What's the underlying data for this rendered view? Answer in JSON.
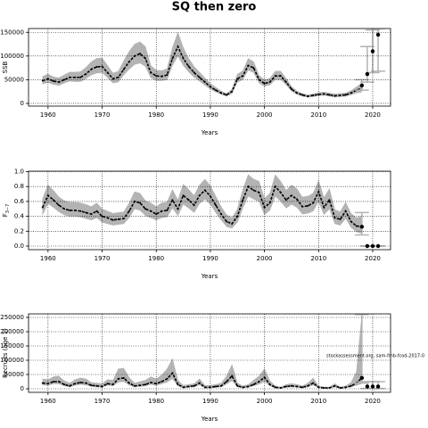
{
  "title": "SQ then zero",
  "chart_data": [
    {
      "type": "line",
      "ylabel": "SSB",
      "xlabel": "Years",
      "grid": true,
      "color": "#000000",
      "band_color": "#b3b3b3",
      "bar_color": "#b3b3b3",
      "xlim": [
        1956.4,
        2023.3
      ],
      "xticks": [
        1960,
        1970,
        1980,
        1990,
        2000,
        2010,
        2020
      ],
      "ylim": [
        -5700,
        158000
      ],
      "yticks": [
        0,
        50000,
        100000,
        150000
      ],
      "x": [
        1959,
        1960,
        1961,
        1962,
        1963,
        1964,
        1965,
        1966,
        1967,
        1968,
        1969,
        1970,
        1971,
        1972,
        1973,
        1974,
        1975,
        1976,
        1977,
        1978,
        1979,
        1980,
        1981,
        1982,
        1983,
        1984,
        1985,
        1986,
        1987,
        1988,
        1989,
        1990,
        1991,
        1992,
        1993,
        1994,
        1995,
        1996,
        1997,
        1998,
        1999,
        2000,
        2001,
        2002,
        2003,
        2004,
        2005,
        2006,
        2007,
        2008,
        2009,
        2010,
        2011,
        2012,
        2013,
        2014,
        2015,
        2016,
        2017,
        2018
      ],
      "values": [
        48000,
        52000,
        47000,
        45000,
        50000,
        55000,
        55000,
        55000,
        62000,
        72000,
        77000,
        78000,
        65000,
        52000,
        55000,
        72000,
        88000,
        100000,
        105000,
        95000,
        65000,
        58000,
        57000,
        60000,
        95000,
        120000,
        95000,
        78000,
        65000,
        55000,
        45000,
        35000,
        28000,
        22000,
        18000,
        25000,
        52000,
        58000,
        80000,
        75000,
        50000,
        42000,
        45000,
        58000,
        58000,
        45000,
        30000,
        22000,
        18000,
        15000,
        17000,
        19000,
        20000,
        18000,
        16000,
        17000,
        18000,
        22000,
        28000,
        32000
      ],
      "low": [
        41000,
        44000,
        40000,
        38000,
        43000,
        47000,
        46000,
        46000,
        52000,
        60000,
        64000,
        65000,
        54000,
        43000,
        45000,
        60000,
        72000,
        82000,
        85000,
        78000,
        54000,
        48000,
        48000,
        50000,
        80000,
        100000,
        80000,
        66000,
        55000,
        47000,
        38000,
        30000,
        24000,
        19000,
        15000,
        21000,
        45000,
        50000,
        70000,
        65000,
        43000,
        36000,
        39000,
        50000,
        50000,
        39000,
        26000,
        19000,
        15000,
        13000,
        14000,
        16000,
        17000,
        15000,
        13000,
        14000,
        15000,
        18000,
        22000,
        24000
      ],
      "high": [
        57000,
        62000,
        56000,
        54000,
        60000,
        66000,
        66000,
        67000,
        76000,
        88000,
        95000,
        96000,
        80000,
        64000,
        68000,
        90000,
        110000,
        125000,
        130000,
        120000,
        80000,
        70000,
        69000,
        73000,
        118000,
        150000,
        118000,
        95000,
        78000,
        66000,
        54000,
        42000,
        34000,
        26000,
        21000,
        30000,
        62000,
        69000,
        95000,
        88000,
        59000,
        50000,
        53000,
        68000,
        68000,
        53000,
        36000,
        26000,
        21000,
        18000,
        20000,
        23000,
        24000,
        22000,
        20000,
        21000,
        22000,
        27000,
        35000,
        42000
      ],
      "projection": {
        "x": [
          2018,
          2019,
          2020,
          2021
        ],
        "values": [
          38000,
          62000,
          110000,
          145000
        ],
        "low": [
          28000,
          45000,
          65000,
          68000
        ],
        "high": [
          50000,
          120000,
          155000,
          158000
        ]
      }
    },
    {
      "type": "line",
      "ylabel": "F",
      "ylabel_sub": "3−7",
      "xlabel": "Years",
      "grid": true,
      "color": "#000000",
      "band_color": "#b3b3b3",
      "bar_color": "#b3b3b3",
      "xlim": [
        1956.4,
        2023.3
      ],
      "xticks": [
        1960,
        1970,
        1980,
        1990,
        2000,
        2010,
        2020
      ],
      "ylim": [
        -0.048,
        1.006
      ],
      "yticks": [
        {
          "value": 0,
          "label": "0.0"
        },
        0.2,
        0.4,
        0.6,
        0.8,
        {
          "value": 1,
          "label": "1.0"
        }
      ],
      "x": [
        1959,
        1960,
        1961,
        1962,
        1963,
        1964,
        1965,
        1966,
        1967,
        1968,
        1969,
        1970,
        1971,
        1972,
        1973,
        1974,
        1975,
        1976,
        1977,
        1978,
        1979,
        1980,
        1981,
        1982,
        1983,
        1984,
        1985,
        1986,
        1987,
        1988,
        1989,
        1990,
        1991,
        1992,
        1993,
        1994,
        1995,
        1996,
        1997,
        1998,
        1999,
        2000,
        2001,
        2002,
        2003,
        2004,
        2005,
        2006,
        2007,
        2008,
        2009,
        2010,
        2011,
        2012,
        2013,
        2014,
        2015,
        2016,
        2017,
        2018
      ],
      "values": [
        0.52,
        0.68,
        0.62,
        0.55,
        0.5,
        0.48,
        0.48,
        0.47,
        0.45,
        0.43,
        0.47,
        0.4,
        0.38,
        0.35,
        0.36,
        0.37,
        0.47,
        0.6,
        0.58,
        0.5,
        0.47,
        0.43,
        0.47,
        0.48,
        0.62,
        0.5,
        0.68,
        0.62,
        0.55,
        0.68,
        0.75,
        0.67,
        0.55,
        0.43,
        0.33,
        0.3,
        0.4,
        0.62,
        0.8,
        0.75,
        0.72,
        0.52,
        0.58,
        0.8,
        0.72,
        0.62,
        0.68,
        0.63,
        0.53,
        0.54,
        0.58,
        0.73,
        0.52,
        0.62,
        0.38,
        0.36,
        0.47,
        0.33,
        0.27,
        0.26
      ],
      "low": [
        0.42,
        0.57,
        0.52,
        0.46,
        0.42,
        0.4,
        0.4,
        0.39,
        0.37,
        0.35,
        0.38,
        0.32,
        0.3,
        0.28,
        0.29,
        0.3,
        0.38,
        0.5,
        0.48,
        0.41,
        0.38,
        0.35,
        0.38,
        0.39,
        0.51,
        0.41,
        0.56,
        0.51,
        0.45,
        0.57,
        0.63,
        0.56,
        0.45,
        0.35,
        0.26,
        0.24,
        0.32,
        0.51,
        0.67,
        0.63,
        0.6,
        0.42,
        0.48,
        0.67,
        0.6,
        0.51,
        0.56,
        0.52,
        0.43,
        0.44,
        0.47,
        0.6,
        0.42,
        0.5,
        0.3,
        0.28,
        0.37,
        0.25,
        0.19,
        0.17
      ],
      "high": [
        0.64,
        0.82,
        0.75,
        0.66,
        0.61,
        0.59,
        0.59,
        0.58,
        0.56,
        0.53,
        0.58,
        0.5,
        0.47,
        0.44,
        0.45,
        0.46,
        0.58,
        0.73,
        0.71,
        0.61,
        0.58,
        0.53,
        0.58,
        0.59,
        0.76,
        0.62,
        0.83,
        0.76,
        0.68,
        0.82,
        0.9,
        0.81,
        0.67,
        0.53,
        0.42,
        0.38,
        0.5,
        0.76,
        0.96,
        0.9,
        0.87,
        0.64,
        0.71,
        0.96,
        0.87,
        0.75,
        0.82,
        0.77,
        0.66,
        0.67,
        0.71,
        0.88,
        0.65,
        0.77,
        0.49,
        0.46,
        0.59,
        0.44,
        0.38,
        0.4
      ],
      "projection": {
        "x": [
          2018,
          2019,
          2020,
          2021
        ],
        "values": [
          0.26,
          0,
          0,
          0
        ],
        "low": [
          0.15,
          0,
          0,
          0
        ],
        "high": [
          0.45,
          0,
          0,
          0
        ]
      }
    },
    {
      "type": "line",
      "ylabel": "Recruits (age 1)",
      "xlabel": "Years",
      "grid": true,
      "color": "#000000",
      "band_color": "#b3b3b3",
      "bar_color": "#b3b3b3",
      "annotation": "stockassessment.org, sam-fmb-fcod-2017-0",
      "xlim": [
        1956.4,
        2023.3
      ],
      "xticks": [
        1960,
        1970,
        1980,
        1990,
        2000,
        2010,
        2020
      ],
      "ylim": [
        -12500,
        262500
      ],
      "yticks": [
        0,
        50000,
        100000,
        150000,
        200000,
        250000
      ],
      "x": [
        1959,
        1960,
        1961,
        1962,
        1963,
        1964,
        1965,
        1966,
        1967,
        1968,
        1969,
        1970,
        1971,
        1972,
        1973,
        1974,
        1975,
        1976,
        1977,
        1978,
        1979,
        1980,
        1981,
        1982,
        1983,
        1984,
        1985,
        1986,
        1987,
        1988,
        1989,
        1990,
        1991,
        1992,
        1993,
        1994,
        1995,
        1996,
        1997,
        1998,
        1999,
        2000,
        2001,
        2002,
        2003,
        2004,
        2005,
        2006,
        2007,
        2008,
        2009,
        2010,
        2011,
        2012,
        2013,
        2014,
        2015,
        2016,
        2017,
        2018
      ],
      "values": [
        20000,
        18000,
        25000,
        25000,
        15000,
        10000,
        18000,
        22000,
        20000,
        12000,
        10000,
        8000,
        18000,
        15000,
        35000,
        38000,
        20000,
        10000,
        12000,
        15000,
        22000,
        18000,
        25000,
        35000,
        55000,
        15000,
        5000,
        8000,
        10000,
        20000,
        5000,
        5000,
        8000,
        10000,
        25000,
        45000,
        10000,
        5000,
        8000,
        15000,
        25000,
        40000,
        15000,
        5000,
        3000,
        8000,
        10000,
        8000,
        5000,
        10000,
        20000,
        5000,
        3000,
        3000,
        10000,
        3000,
        5000,
        10000,
        20000,
        38000
      ],
      "low": [
        13000,
        12000,
        17000,
        17000,
        10000,
        6000,
        12000,
        15000,
        13000,
        8000,
        6000,
        5000,
        12000,
        10000,
        23000,
        25000,
        13000,
        6000,
        8000,
        10000,
        15000,
        12000,
        17000,
        23000,
        35000,
        10000,
        3000,
        5000,
        6000,
        13000,
        3000,
        3000,
        5000,
        6000,
        16000,
        28000,
        6000,
        3000,
        5000,
        10000,
        16000,
        25000,
        10000,
        3000,
        2000,
        5000,
        6000,
        5000,
        3000,
        6000,
        13000,
        3000,
        2000,
        2000,
        6000,
        2000,
        3000,
        6000,
        12000,
        18000
      ],
      "high": [
        35000,
        32000,
        42000,
        45000,
        28000,
        20000,
        32000,
        38000,
        35000,
        22000,
        20000,
        18000,
        32000,
        30000,
        70000,
        72000,
        40000,
        20000,
        25000,
        30000,
        42000,
        35000,
        48000,
        70000,
        105000,
        30000,
        12000,
        15000,
        18000,
        35000,
        12000,
        12000,
        15000,
        20000,
        45000,
        85000,
        20000,
        10000,
        15000,
        30000,
        45000,
        70000,
        28000,
        10000,
        6000,
        15000,
        18000,
        15000,
        10000,
        20000,
        38000,
        10000,
        6000,
        6000,
        18000,
        6000,
        10000,
        22000,
        60000,
        260000
      ],
      "projection": {
        "x": [
          2018,
          2019,
          2020,
          2021
        ],
        "values": [
          38000,
          8000,
          8000,
          8000
        ],
        "low": [
          20000,
          1000,
          1000,
          1000
        ],
        "high": [
          260000,
          25000,
          25000,
          25000
        ]
      }
    }
  ]
}
